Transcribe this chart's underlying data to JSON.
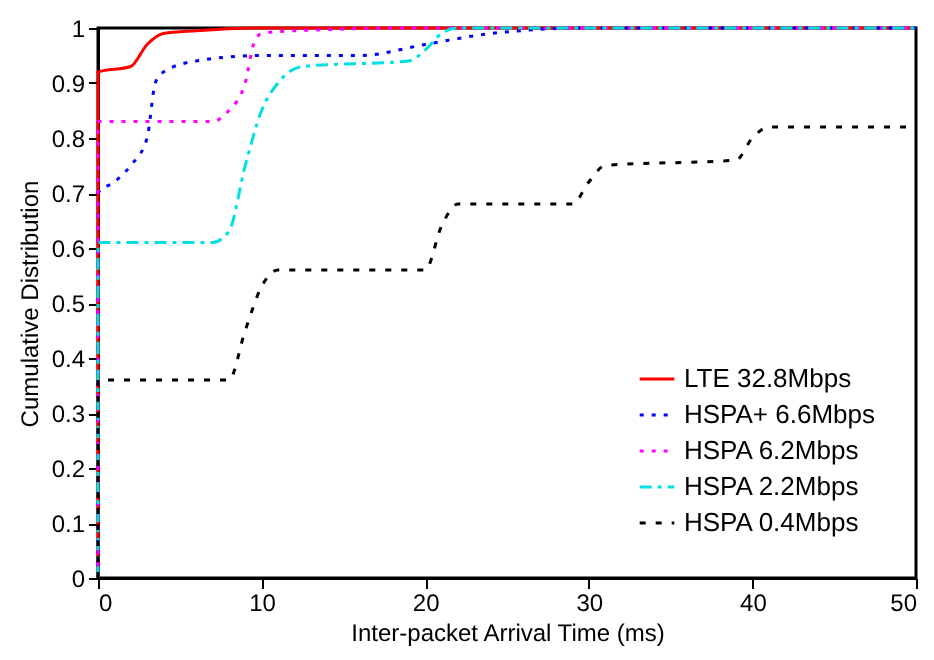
{
  "chart_data": {
    "type": "line",
    "xlabel": "Inter-packet Arrival Time (ms)",
    "ylabel": "Cumulative Distribution",
    "xlim": [
      0,
      50
    ],
    "ylim": [
      0,
      1
    ],
    "xticks": [
      0,
      10,
      20,
      30,
      40,
      50
    ],
    "yticks": [
      0,
      0.1,
      0.2,
      0.3,
      0.4,
      0.5,
      0.6,
      0.7,
      0.8,
      0.9,
      1
    ],
    "grid": false,
    "legend": "bottom right",
    "marker": "none",
    "series": [
      {
        "name": "LTE 32.8Mbps",
        "color": "#ff0000",
        "line_style": "solid",
        "x": [
          0,
          0,
          2,
          3,
          4,
          6,
          10,
          50
        ],
        "values": [
          0,
          0.92,
          0.93,
          0.97,
          0.99,
          0.995,
          1,
          1
        ]
      },
      {
        "name": "HSPA+ 6.6Mbps",
        "color": "#0000ff",
        "line_style": "dotted",
        "x": [
          0,
          0,
          1,
          2,
          3,
          3.5,
          4,
          6,
          10,
          16,
          20,
          24,
          30,
          50
        ],
        "values": [
          0,
          0.7,
          0.72,
          0.75,
          0.8,
          0.9,
          0.92,
          0.94,
          0.95,
          0.95,
          0.97,
          0.99,
          1,
          1
        ]
      },
      {
        "name": "HSPA 6.2Mbps",
        "color": "#ff00ff",
        "line_style": "dotted",
        "x": [
          0,
          0,
          7,
          8,
          9,
          9.5,
          10,
          12,
          20,
          50
        ],
        "values": [
          0,
          0.83,
          0.83,
          0.85,
          0.9,
          0.97,
          0.99,
          0.995,
          1,
          1
        ]
      },
      {
        "name": "HSPA 2.2Mbps",
        "color": "#00e0e0",
        "line_style": "dashdot",
        "x": [
          0,
          0,
          7,
          8,
          9,
          10,
          11,
          12.5,
          19,
          20,
          21,
          22,
          50
        ],
        "values": [
          0,
          0.61,
          0.61,
          0.63,
          0.75,
          0.85,
          0.9,
          0.93,
          0.94,
          0.96,
          0.99,
          1,
          1
        ]
      },
      {
        "name": "HSPA 0.4Mbps",
        "color": "#000000",
        "line_style": "dashed",
        "x": [
          0,
          0,
          8,
          9,
          10,
          11,
          20,
          21,
          22,
          29,
          30,
          31,
          39,
          40,
          41,
          50
        ],
        "values": [
          0,
          0.36,
          0.36,
          0.45,
          0.53,
          0.56,
          0.56,
          0.64,
          0.68,
          0.68,
          0.72,
          0.75,
          0.76,
          0.8,
          0.82,
          0.82
        ]
      }
    ]
  }
}
